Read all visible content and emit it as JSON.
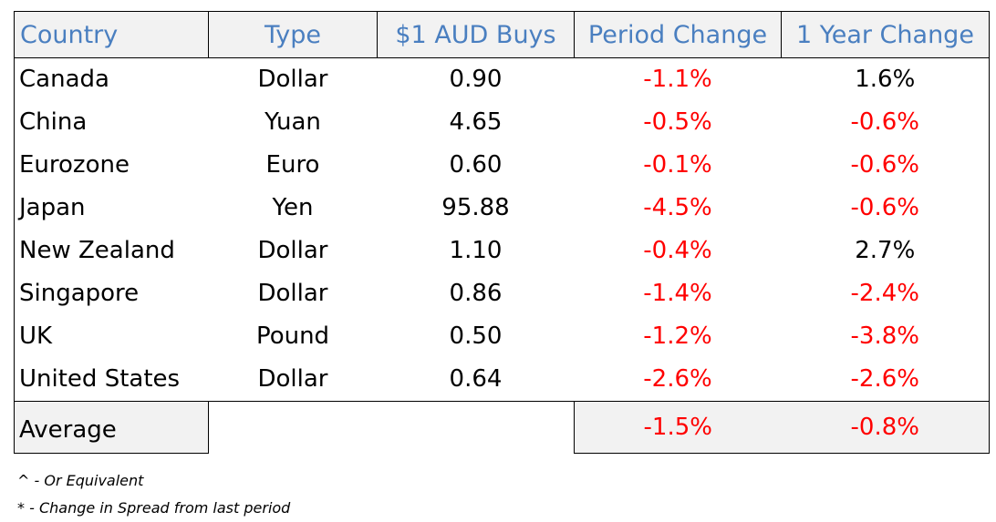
{
  "table": {
    "headers": [
      "Country",
      "Type",
      "$1 AUD Buys",
      "Period Change",
      "1 Year Change"
    ],
    "rows": [
      {
        "country": "Canada",
        "type": "Dollar",
        "buys": "0.90",
        "period": "-1.1%",
        "year": "1.6%"
      },
      {
        "country": "China",
        "type": "Yuan",
        "buys": "4.65",
        "period": "-0.5%",
        "year": "-0.6%"
      },
      {
        "country": "Eurozone",
        "type": "Euro",
        "buys": "0.60",
        "period": "-0.1%",
        "year": "-0.6%"
      },
      {
        "country": "Japan",
        "type": "Yen",
        "buys": "95.88",
        "period": "-4.5%",
        "year": "-0.6%"
      },
      {
        "country": "New Zealand",
        "type": "Dollar",
        "buys": "1.10",
        "period": "-0.4%",
        "year": "2.7%"
      },
      {
        "country": "Singapore",
        "type": "Dollar",
        "buys": "0.86",
        "period": "-1.4%",
        "year": "-2.4%"
      },
      {
        "country": "UK",
        "type": "Pound",
        "buys": "0.50",
        "period": "-1.2%",
        "year": "-3.8%"
      },
      {
        "country": "United States",
        "type": "Dollar",
        "buys": "0.64",
        "period": "-2.6%",
        "year": "-2.6%"
      }
    ],
    "average": {
      "label": "Average",
      "period": "-1.5%",
      "year": "-0.8%"
    }
  },
  "footnotes": [
    "^ - Or Equivalent",
    "* - Change in Spread from last period"
  ],
  "colors": {
    "header_text": "#4a7fc0",
    "negative": "#ff0000",
    "header_bg": "#f2f2f2"
  }
}
